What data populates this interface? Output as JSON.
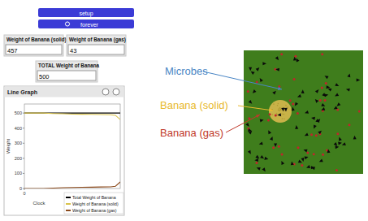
{
  "buttons": [
    {
      "label": "setup"
    },
    {
      "label": "forever"
    }
  ],
  "monitors": [
    {
      "label": "Weight of Banana (solid)",
      "value": 457
    },
    {
      "label": "Weight of Banana (gas)",
      "value": 43
    },
    {
      "label": "TOTAL Weight of Banana",
      "value": 500
    }
  ],
  "chart_data": {
    "type": "line",
    "title": "Line Graph",
    "x_label": "Clock",
    "y_label": "Weight",
    "x": [
      0,
      10,
      20,
      30,
      40,
      50,
      60,
      70,
      80,
      90,
      95,
      100
    ],
    "series": [
      {
        "name": "Total Weight of Banana",
        "color": "#000000",
        "values": [
          500,
          500,
          500,
          500,
          500,
          500,
          500,
          500,
          500,
          500,
          500,
          500
        ]
      },
      {
        "name": "Weight of Banana (solid)",
        "color": "#d8c24a",
        "values": [
          500,
          500,
          500,
          497,
          495,
          493,
          492,
          491,
          490,
          489,
          485,
          457
        ]
      },
      {
        "name": "Weight of Banana (gas)",
        "color": "#8b4a1c",
        "values": [
          0,
          0,
          0,
          3,
          5,
          7,
          8,
          9,
          10,
          11,
          15,
          43
        ]
      }
    ],
    "xlim": [
      0,
      100
    ],
    "xticks": [
      0
    ],
    "ylim": [
      0,
      560
    ],
    "yticks": [
      0,
      100,
      200,
      300,
      400,
      500
    ],
    "grid": false,
    "legend": "lower right"
  },
  "annotations": [
    {
      "text": "Microbes",
      "color": "#4a86c5"
    },
    {
      "text": "Banana (solid)",
      "color": "#e8b92e"
    },
    {
      "text": "Banana (gas)",
      "color": "#c0392b"
    }
  ]
}
